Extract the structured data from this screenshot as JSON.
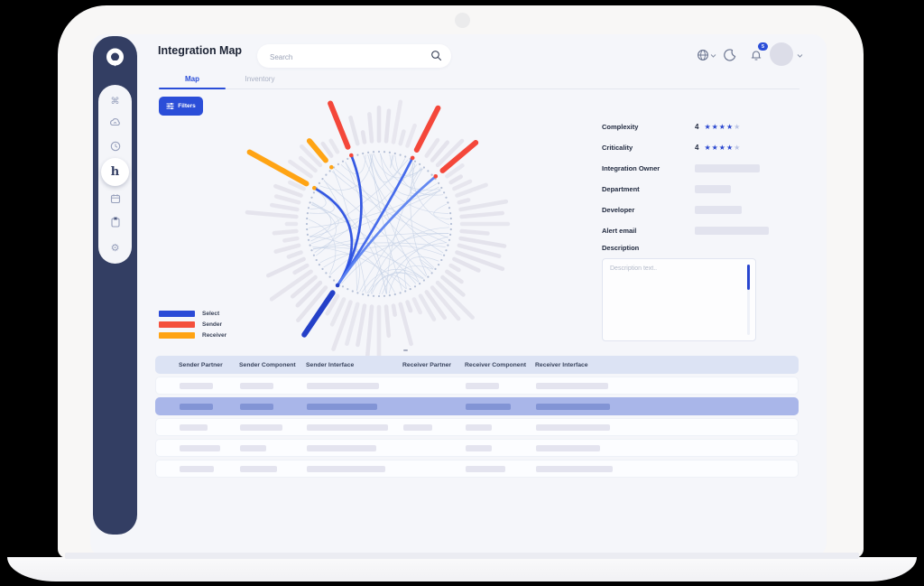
{
  "header": {
    "title": "Integration Map",
    "search_placeholder": "Search",
    "notification_count": "5"
  },
  "sidebar": {
    "items": [
      {
        "icon": "command",
        "active": false
      },
      {
        "icon": "cloud-sync",
        "active": false
      },
      {
        "icon": "history-clock",
        "active": false
      },
      {
        "icon": "integration-map",
        "active": true
      },
      {
        "icon": "calendar",
        "active": false
      },
      {
        "icon": "clipboard",
        "active": false
      },
      {
        "icon": "settings-gear",
        "active": false
      }
    ]
  },
  "tabs": [
    {
      "label": "Map",
      "active": true
    },
    {
      "label": "Inventory",
      "active": false
    }
  ],
  "toolbar": {
    "filters_label": "Filters"
  },
  "legend": [
    {
      "label": "Select",
      "color": "#2b4bd7"
    },
    {
      "label": "Sender",
      "color": "#f4503c"
    },
    {
      "label": "Receiver",
      "color": "#ffa313"
    }
  ],
  "details_panel": {
    "fields": [
      {
        "label": "Complexity",
        "type": "rating",
        "value": "4",
        "filled": 4,
        "total": 5
      },
      {
        "label": "Criticality",
        "type": "rating",
        "value": "4",
        "filled": 4,
        "total": 5
      },
      {
        "label": "Integration Owner",
        "type": "placeholder",
        "width": 72
      },
      {
        "label": "Department",
        "type": "placeholder",
        "width": 40
      },
      {
        "label": "Developer",
        "type": "placeholder",
        "width": 52
      },
      {
        "label": "Alert email",
        "type": "placeholder",
        "width": 82
      }
    ],
    "description": {
      "label": "Description",
      "placeholder": "Description text.."
    },
    "star_color_full": "#2946cf",
    "star_color_empty": "#b9c3e4"
  },
  "table": {
    "columns": [
      "Sender Partner",
      "Sender Component",
      "Sender Interface",
      "Receiver Partner",
      "Receiver Component",
      "Receiver Interface"
    ],
    "rows": [
      {
        "selected": false,
        "bars": [
          37,
          37,
          80,
          0,
          37,
          80
        ]
      },
      {
        "selected": true,
        "bars": [
          37,
          37,
          78,
          0,
          50,
          82
        ]
      },
      {
        "selected": false,
        "bars": [
          31,
          47,
          90,
          32,
          29,
          82
        ]
      },
      {
        "selected": false,
        "bars": [
          45,
          29,
          77,
          0,
          29,
          71
        ]
      },
      {
        "selected": false,
        "bars": [
          38,
          41,
          87,
          0,
          44,
          85
        ]
      }
    ]
  },
  "chart_data": {
    "type": "radial-network",
    "title": "",
    "description": "Hierarchical edge-bundled integration map: ring of nodes, radial activity bars, highlighted sender/receiver/selected integrations",
    "center": [
      244,
      144
    ],
    "ring_radius": 80,
    "ring_dot_count": 84,
    "spokes": {
      "count": 72,
      "inner_radius": 92,
      "min_len": 10,
      "max_len": 56,
      "color": "#e4e3ec"
    },
    "mesh_chords": {
      "count": 58,
      "color": "#c6d2e6"
    },
    "highlight_bars": [
      {
        "angle": -22,
        "length": 52,
        "color": "#f4473a",
        "role": "sender"
      },
      {
        "angle": 27,
        "length": 52,
        "color": "#f4473a",
        "role": "sender"
      },
      {
        "angle": 50,
        "length": 48,
        "color": "#f4473a",
        "role": "sender"
      },
      {
        "angle": -40,
        "length": 28,
        "color": "#ffa414",
        "role": "receiver"
      },
      {
        "angle": -61,
        "length": 72,
        "color": "#ffa414",
        "role": "receiver"
      },
      {
        "angle": 214,
        "length": 56,
        "color": "#2440c8",
        "role": "select"
      }
    ],
    "selected_edges": {
      "target_angle": 214,
      "source_angles": [
        -22,
        -61,
        27,
        50
      ],
      "colors": [
        "#2a4fe0",
        "#2a4fe0",
        "#3c63ea",
        "#5b82f0"
      ]
    },
    "seed": 7
  }
}
